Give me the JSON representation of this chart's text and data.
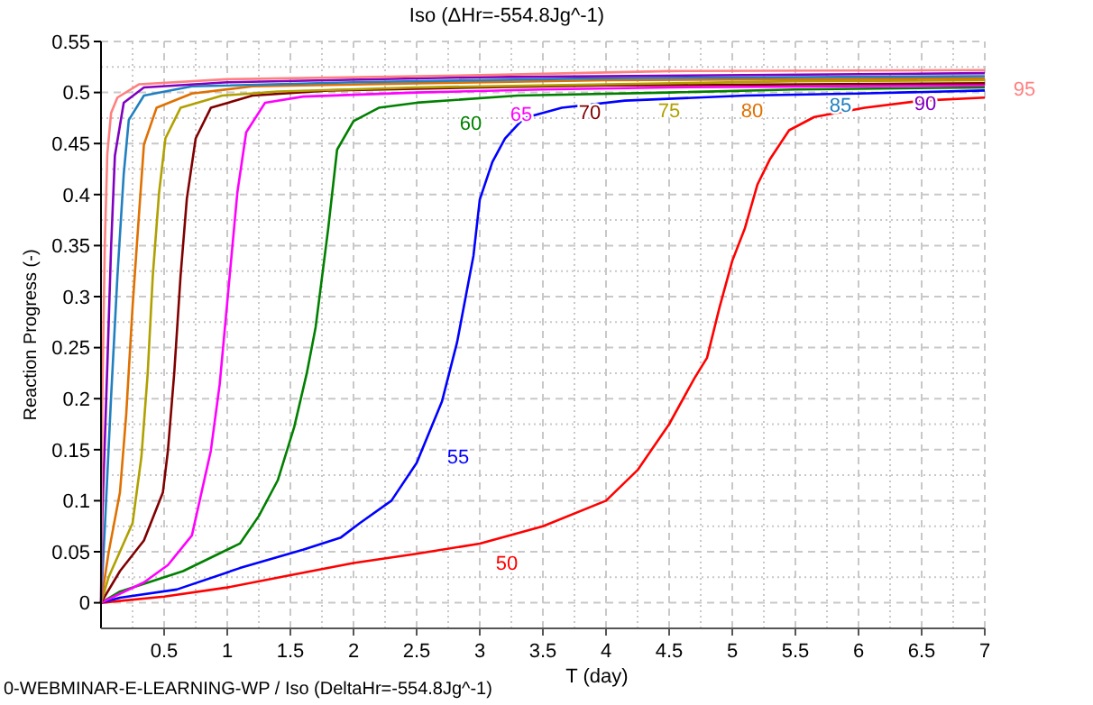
{
  "chart_data": {
    "type": "line",
    "title": "Iso (ΔHr=-554.8Jg^-1)",
    "xlabel": "T (day)",
    "ylabel": "Reaction Progress (-)",
    "xlim": [
      0,
      7
    ],
    "xticks": [
      0.5,
      1,
      1.5,
      2,
      2.5,
      3,
      3.5,
      4,
      4.5,
      5,
      5.5,
      6,
      6.5,
      7
    ],
    "ylim": [
      -0.025,
      0.55
    ],
    "yticks": [
      0,
      0.05,
      0.1,
      0.15,
      0.2,
      0.25,
      0.3,
      0.35,
      0.4,
      0.45,
      0.5,
      0.55
    ],
    "grid": true,
    "marker": "none",
    "line_style": "solid",
    "series": [
      {
        "name": "50",
        "color": "#ff0000",
        "x": [
          0,
          0.5,
          1,
          1.5,
          2,
          2.5,
          3,
          3.5,
          4,
          4.25,
          4.5,
          4.7,
          4.8,
          4.9,
          5,
          5.1,
          5.2,
          5.3,
          5.45,
          5.65,
          6.05,
          6.5,
          7
        ],
        "values": [
          0,
          0.006,
          0.015,
          0.027,
          0.039,
          0.048,
          0.058,
          0.075,
          0.1,
          0.13,
          0.175,
          0.22,
          0.24,
          0.29,
          0.335,
          0.367,
          0.41,
          0.435,
          0.463,
          0.476,
          0.485,
          0.492,
          0.495
        ]
      },
      {
        "name": "55",
        "color": "#0000ff",
        "x": [
          0,
          0.15,
          0.6,
          1.1,
          1.6,
          1.9,
          2.05,
          2.3,
          2.5,
          2.7,
          2.82,
          2.95,
          3,
          3.1,
          3.2,
          3.35,
          3.65,
          4.15,
          5.1,
          6,
          7
        ],
        "values": [
          0,
          0.005,
          0.013,
          0.034,
          0.052,
          0.064,
          0.078,
          0.1,
          0.137,
          0.197,
          0.255,
          0.34,
          0.395,
          0.432,
          0.455,
          0.475,
          0.485,
          0.492,
          0.497,
          0.499,
          0.502
        ]
      },
      {
        "name": "60",
        "color": "#008000",
        "x": [
          0,
          0.15,
          0.65,
          1.1,
          1.25,
          1.4,
          1.53,
          1.63,
          1.7,
          1.8,
          1.87,
          2,
          2.2,
          2.5,
          3.3,
          4.5,
          5.5,
          7
        ],
        "values": [
          0,
          0.011,
          0.031,
          0.058,
          0.085,
          0.12,
          0.172,
          0.225,
          0.27,
          0.367,
          0.444,
          0.472,
          0.485,
          0.49,
          0.497,
          0.5,
          0.503,
          0.505
        ]
      },
      {
        "name": "65",
        "color": "#ff00ff",
        "x": [
          0,
          0.34,
          0.53,
          0.72,
          0.87,
          0.94,
          1.01,
          1.08,
          1.15,
          1.3,
          1.6,
          2.5,
          3.5,
          4.5,
          7
        ],
        "values": [
          0,
          0.02,
          0.037,
          0.066,
          0.149,
          0.214,
          0.308,
          0.402,
          0.461,
          0.49,
          0.496,
          0.5,
          0.503,
          0.505,
          0.507
        ]
      },
      {
        "name": "70",
        "color": "#800000",
        "x": [
          0,
          0.15,
          0.34,
          0.49,
          0.53,
          0.58,
          0.63,
          0.68,
          0.75,
          0.87,
          1.2,
          1.8,
          3,
          4,
          7
        ],
        "values": [
          0,
          0.031,
          0.061,
          0.108,
          0.149,
          0.225,
          0.32,
          0.396,
          0.455,
          0.485,
          0.497,
          0.502,
          0.505,
          0.507,
          0.509
        ]
      },
      {
        "name": "75",
        "color": "#b0a000",
        "x": [
          0,
          0.06,
          0.25,
          0.32,
          0.37,
          0.41,
          0.46,
          0.51,
          0.63,
          0.96,
          1.4,
          2.5,
          4,
          5.5,
          7
        ],
        "values": [
          0,
          0.025,
          0.078,
          0.143,
          0.225,
          0.32,
          0.402,
          0.455,
          0.485,
          0.497,
          0.501,
          0.505,
          0.508,
          0.511,
          0.512
        ]
      },
      {
        "name": "80",
        "color": "#e07000",
        "x": [
          0,
          0.06,
          0.15,
          0.2,
          0.25,
          0.3,
          0.34,
          0.44,
          0.72,
          1.2,
          2.5,
          4,
          7
        ],
        "values": [
          0,
          0.049,
          0.108,
          0.185,
          0.29,
          0.379,
          0.449,
          0.485,
          0.499,
          0.506,
          0.509,
          0.512,
          0.514
        ]
      },
      {
        "name": "85",
        "color": "#2080c0",
        "x": [
          0,
          0.03,
          0.08,
          0.13,
          0.18,
          0.22,
          0.34,
          0.72,
          2,
          4,
          7
        ],
        "values": [
          0,
          0.073,
          0.202,
          0.32,
          0.42,
          0.473,
          0.497,
          0.506,
          0.51,
          0.514,
          0.516
        ]
      },
      {
        "name": "90",
        "color": "#8000c0",
        "x": [
          0,
          0.01,
          0.05,
          0.08,
          0.11,
          0.18,
          0.34,
          1,
          3,
          7
        ],
        "values": [
          0,
          0.084,
          0.232,
          0.349,
          0.438,
          0.49,
          0.505,
          0.51,
          0.515,
          0.519
        ]
      },
      {
        "name": "95",
        "color": "#ff8080",
        "x": [
          0,
          0.01,
          0.03,
          0.05,
          0.08,
          0.13,
          0.3,
          1,
          3,
          4.5,
          7
        ],
        "values": [
          0,
          0.2,
          0.35,
          0.44,
          0.48,
          0.495,
          0.508,
          0.513,
          0.517,
          0.521,
          0.522
        ]
      }
    ],
    "annotations": [
      "0-WEBMINAR-E-LEARNING-WP / Iso (DeltaHr=-554.8Jg^-1)"
    ]
  }
}
